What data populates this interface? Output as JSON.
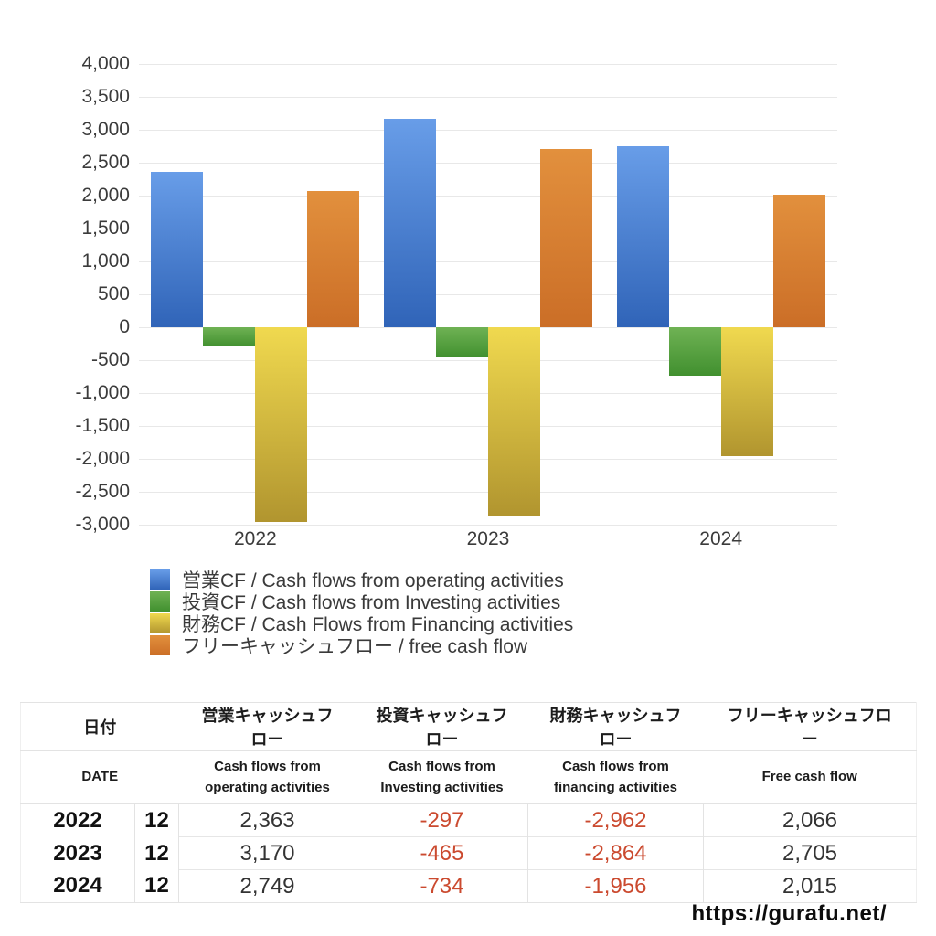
{
  "chart_data": {
    "type": "bar",
    "categories": [
      "2022",
      "2023",
      "2024"
    ],
    "series": [
      {
        "key": "operating-cf",
        "name": "営業CF / Cash flows from operating activities",
        "values": [
          2363,
          3170,
          2749
        ],
        "color_top": "#689de8",
        "color_bottom": "#3064b8"
      },
      {
        "key": "investing-cf",
        "name": "投資CF / Cash flows from Investing activities",
        "values": [
          -297,
          -465,
          -734
        ],
        "color_top": "#6fb254",
        "color_bottom": "#41902f"
      },
      {
        "key": "financing-cf",
        "name": "財務CF / Cash Flows from Financing activities",
        "values": [
          -2962,
          -2864,
          -1956
        ],
        "color_top": "#f0d94f",
        "color_bottom": "#b1952f"
      },
      {
        "key": "free-cash-flow",
        "name": "フリーキャッシュフロー / free cash flow",
        "values": [
          2066,
          2705,
          2015
        ],
        "color_top": "#e2903d",
        "color_bottom": "#cb6e27"
      }
    ],
    "title": "",
    "xlabel": "",
    "ylabel": "",
    "ylim": [
      -3000,
      4000
    ],
    "ytick_step": 500,
    "grid": true,
    "legend_position": "bottom-left"
  },
  "table": {
    "header_jp": {
      "date": "日付",
      "operating": "営業キャッシュフロー",
      "investing": "投資キャッシュフロー",
      "financing": "財務キャッシュフロー",
      "free": "フリーキャッシュフロー"
    },
    "header_en": {
      "date": "DATE",
      "operating": "Cash flows from operating activities",
      "investing": "Cash flows from Investing activities",
      "financing": "Cash flows from financing activities",
      "free": "Free cash flow"
    },
    "rows": [
      {
        "year": "2022",
        "month": "12",
        "values": [
          "2,363",
          "-297",
          "-2,962",
          "2,066"
        ]
      },
      {
        "year": "2023",
        "month": "12",
        "values": [
          "3,170",
          "-465",
          "-2,864",
          "2,705"
        ]
      },
      {
        "year": "2024",
        "month": "12",
        "values": [
          "2,749",
          "-734",
          "-1,956",
          "2,015"
        ]
      }
    ]
  },
  "footer": {
    "url": "https://gurafu.net/"
  },
  "colors": {
    "negative_value": "#cb4a2f",
    "grid_line": "#e8e8e8",
    "axis_text": "#3b3b3b",
    "table_border": "#e3e3e3"
  }
}
